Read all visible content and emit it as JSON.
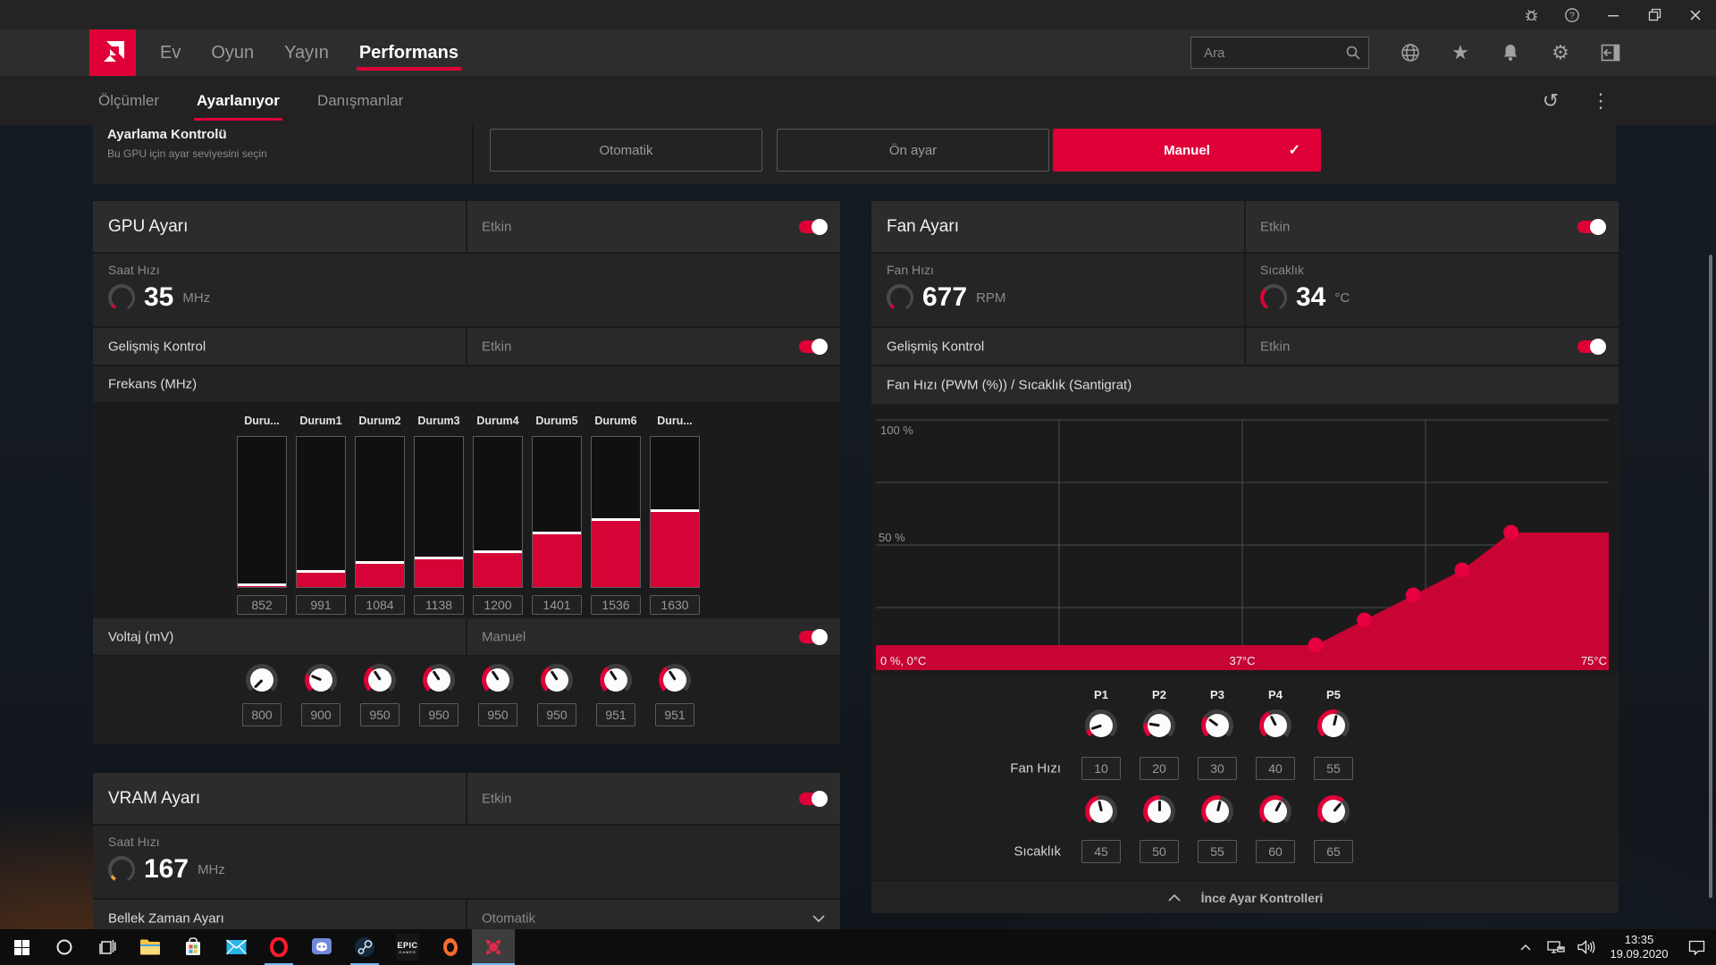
{
  "colors": {
    "accent": "#e00038",
    "chart_fill": "#c70434",
    "chart_point": "#e60041",
    "bar_fill": "#d60336",
    "vram_gauge": "#e8a33d",
    "running_indicator": "#76b9ed"
  },
  "titlebar": {
    "icons": [
      "bug",
      "help",
      "minimize",
      "maximize",
      "close"
    ]
  },
  "navbar": {
    "menu": [
      {
        "label": "Ev",
        "active": false
      },
      {
        "label": "Oyun",
        "active": false
      },
      {
        "label": "Yayın",
        "active": false
      },
      {
        "label": "Performans",
        "active": true
      }
    ],
    "search": {
      "placeholder": "Ara"
    },
    "icons": [
      "globe",
      "star",
      "bell",
      "gear",
      "collapse-panel"
    ]
  },
  "subnav": {
    "tabs": [
      {
        "label": "Ölçümler",
        "active": false
      },
      {
        "label": "Ayarlanıyor",
        "active": true
      },
      {
        "label": "Danışmanlar",
        "active": false
      }
    ],
    "icons": [
      "reset",
      "more"
    ]
  },
  "tuning_control": {
    "title": "Ayarlama Kontrolü",
    "subtitle": "Bu GPU için ayar seviyesini seçin",
    "options": [
      {
        "label": "Otomatik",
        "selected": false
      },
      {
        "label": "Ön ayar",
        "selected": false
      },
      {
        "label": "Manuel",
        "selected": true
      }
    ]
  },
  "gpu": {
    "title": "GPU Ayarı",
    "status_label": "Etkin",
    "enabled": true,
    "clock": {
      "label": "Saat Hızı",
      "value": "35",
      "unit": "MHz"
    },
    "advanced": {
      "label": "Gelişmiş Kontrol",
      "status_label": "Etkin",
      "enabled": true
    },
    "frequency": {
      "label": "Frekans (MHz)",
      "scale_min": 845,
      "scale_max": 2400,
      "states": [
        {
          "name": "Duru...",
          "mhz": 852
        },
        {
          "name": "Durum1",
          "mhz": 991
        },
        {
          "name": "Durum2",
          "mhz": 1084
        },
        {
          "name": "Durum3",
          "mhz": 1138
        },
        {
          "name": "Durum4",
          "mhz": 1200
        },
        {
          "name": "Durum5",
          "mhz": 1401
        },
        {
          "name": "Durum6",
          "mhz": 1536
        },
        {
          "name": "Duru...",
          "mhz": 1630
        }
      ]
    },
    "voltage": {
      "label": "Voltaj (mV)",
      "mode_label": "Manuel",
      "enabled": true,
      "knob_min": 800,
      "knob_max": 1200,
      "values": [
        800,
        900,
        950,
        950,
        950,
        950,
        951,
        951
      ]
    }
  },
  "vram": {
    "title": "VRAM Ayarı",
    "status_label": "Etkin",
    "enabled": true,
    "clock": {
      "label": "Saat Hızı",
      "value": "167",
      "unit": "MHz"
    },
    "memory_timing": {
      "label": "Bellek Zaman Ayarı",
      "value": "Otomatik"
    }
  },
  "fan": {
    "title": "Fan Ayarı",
    "status_label": "Etkin",
    "enabled": true,
    "speed": {
      "label": "Fan Hızı",
      "value": "677",
      "unit": "RPM"
    },
    "temp": {
      "label": "Sıcaklık",
      "value": "34",
      "unit": "°C"
    },
    "advanced": {
      "label": "Gelişmiş Kontrol",
      "status_label": "Etkin",
      "enabled": true
    },
    "curve_title": "Fan Hızı (PWM (%)) / Sıcaklık (Santigrat)",
    "point_labels": [
      "P1",
      "P2",
      "P3",
      "P4",
      "P5"
    ],
    "fan_row_label": "Fan Hızı",
    "fan_values": [
      10,
      20,
      30,
      40,
      55
    ],
    "temp_row_label": "Sıcaklık",
    "temp_values": [
      45,
      50,
      55,
      60,
      65
    ],
    "knob_min": 0,
    "knob_max": 100,
    "footer_label": "İnce Ayar Kontrolleri"
  },
  "chart_data": {
    "type": "area",
    "title": "Fan Hızı (PWM (%)) / Sıcaklık (Santigrat)",
    "xlabel": "Sıcaklık (Santigrat)",
    "ylabel": "Fan Hızı (PWM %)",
    "xlim": [
      0,
      75
    ],
    "ylim": [
      0,
      100
    ],
    "x": [
      0,
      45,
      50,
      55,
      60,
      65,
      75
    ],
    "y": [
      10,
      10,
      20,
      30,
      40,
      55,
      55
    ],
    "points": [
      [
        45,
        10
      ],
      [
        50,
        20
      ],
      [
        55,
        30
      ],
      [
        60,
        40
      ],
      [
        65,
        55
      ]
    ],
    "y_tick_labels": [
      "100 %",
      "50 %"
    ],
    "x_tick_labels": [
      "0 %, 0°C",
      "37°C",
      "75°C"
    ],
    "grid": true,
    "legend": false
  },
  "taskbar": {
    "icons": [
      "start",
      "search",
      "task-view",
      "file-explorer",
      "store",
      "mail",
      "opera",
      "discord",
      "steam",
      "epic-games",
      "origin",
      "radeon-software"
    ],
    "running": [
      "opera",
      "steam",
      "radeon-software"
    ],
    "active": "radeon-software",
    "epic_line1": "EPIC",
    "epic_line2": "GAMES",
    "time": "13:35",
    "date": "19.09.2020",
    "tray_icons": [
      "tray-expand",
      "network",
      "volume",
      "action-center"
    ]
  }
}
